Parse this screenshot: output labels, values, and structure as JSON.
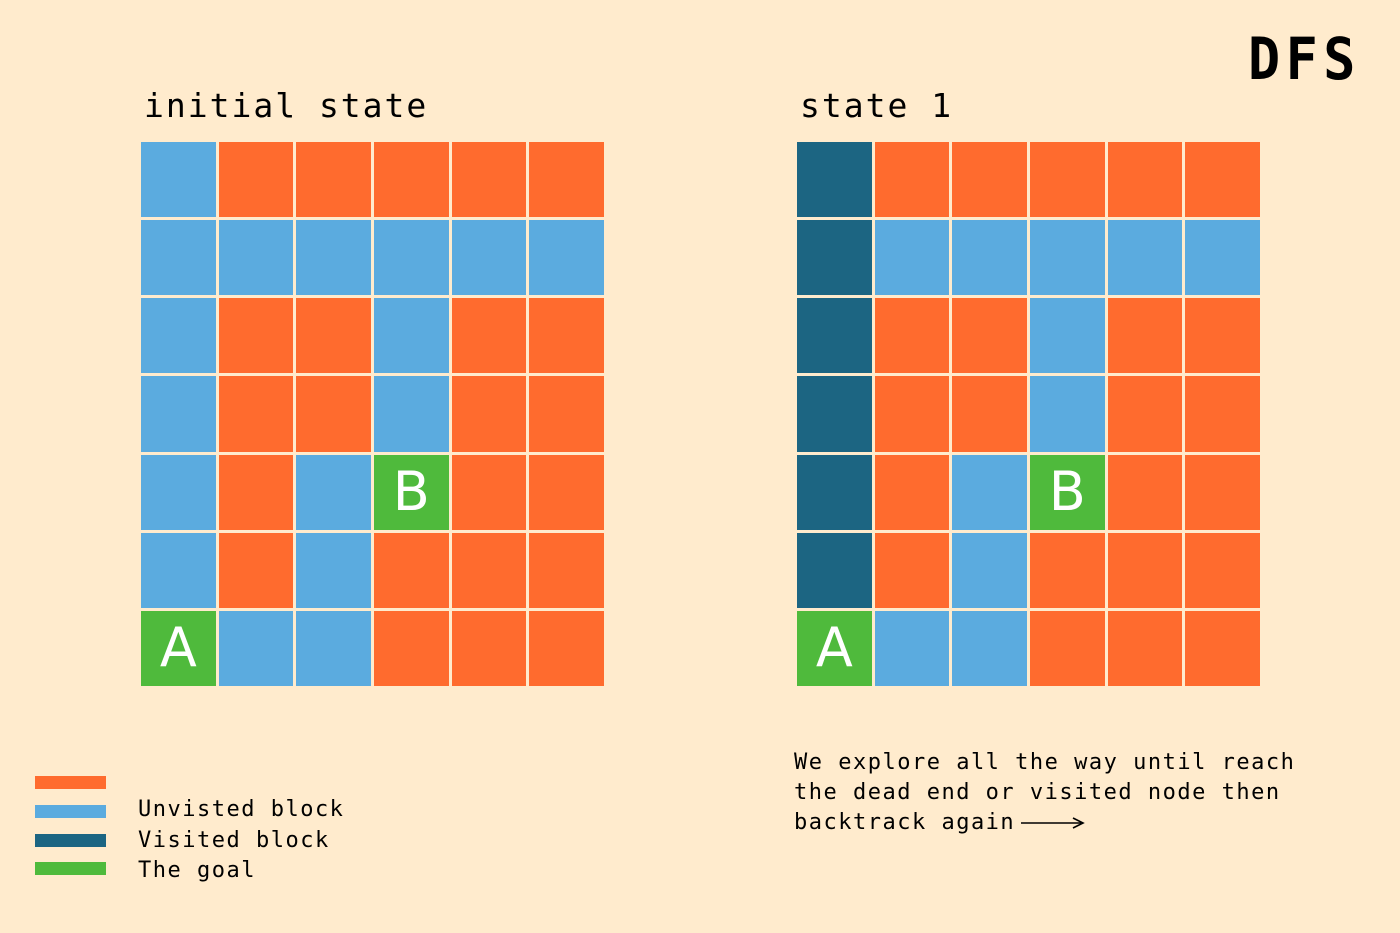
{
  "title": "DFS",
  "colors": {
    "background": "#ffebcd",
    "unvisited_wall": "#ff6b2e",
    "unvisited_block": "#5babdf",
    "visited_block": "#1c6582",
    "goal": "#4fba3c"
  },
  "grids": [
    {
      "label": "initial state",
      "rows": [
        [
          "U",
          "W",
          "W",
          "W",
          "W",
          "W"
        ],
        [
          "U",
          "U",
          "U",
          "U",
          "U",
          "U"
        ],
        [
          "U",
          "W",
          "W",
          "U",
          "W",
          "W"
        ],
        [
          "U",
          "W",
          "W",
          "U",
          "W",
          "W"
        ],
        [
          "U",
          "W",
          "U",
          "G",
          "W",
          "W"
        ],
        [
          "U",
          "W",
          "U",
          "W",
          "W",
          "W"
        ],
        [
          "G",
          "U",
          "U",
          "W",
          "W",
          "W"
        ]
      ],
      "letters": [
        {
          "row": 4,
          "col": 3,
          "text": "B"
        },
        {
          "row": 6,
          "col": 0,
          "text": "A"
        }
      ]
    },
    {
      "label": "state 1",
      "rows": [
        [
          "V",
          "W",
          "W",
          "W",
          "W",
          "W"
        ],
        [
          "V",
          "U",
          "U",
          "U",
          "U",
          "U"
        ],
        [
          "V",
          "W",
          "W",
          "U",
          "W",
          "W"
        ],
        [
          "V",
          "W",
          "W",
          "U",
          "W",
          "W"
        ],
        [
          "V",
          "W",
          "U",
          "G",
          "W",
          "W"
        ],
        [
          "V",
          "W",
          "U",
          "W",
          "W",
          "W"
        ],
        [
          "G",
          "U",
          "U",
          "W",
          "W",
          "W"
        ]
      ],
      "letters": [
        {
          "row": 4,
          "col": 3,
          "text": "B"
        },
        {
          "row": 6,
          "col": 0,
          "text": "A"
        }
      ]
    }
  ],
  "legend": [
    {
      "color_key": "unvisited_wall",
      "label": ""
    },
    {
      "color_key": "unvisited_block",
      "label": "Unvisted block"
    },
    {
      "color_key": "visited_block",
      "label": "Visited block"
    },
    {
      "color_key": "goal",
      "label": "The goal"
    }
  ],
  "caption": {
    "lines": [
      "We explore all the way until reach",
      "the dead end or visited node then",
      "backtrack again"
    ],
    "arrow_icon": "right-arrow-icon"
  }
}
